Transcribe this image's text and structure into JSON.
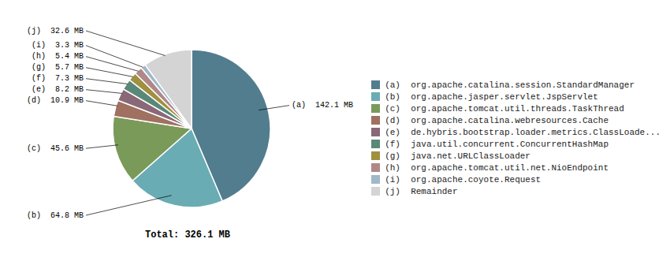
{
  "chart_data": {
    "type": "pie",
    "categories": [
      "(a)  org.apache.catalina.session.StandardManager",
      "(b)  org.apache.jasper.servlet.JspServlet",
      "(c)  org.apache.tomcat.util.threads.TaskThread",
      "(d)  org.apache.catalina.webresources.Cache",
      "(e)  de.hybris.bootstrap.loader.metrics.ClassLoade...",
      "(f)  java.util.concurrent.ConcurrentHashMap",
      "(g)  java.net.URLClassLoader",
      "(h)  org.apache.tomcat.util.net.NioEndpoint",
      "(i)  org.apache.coyote.Request",
      "(j)  Remainder"
    ],
    "values": [
      142.1,
      64.8,
      45.6,
      10.9,
      8.2,
      7.3,
      5.7,
      5.4,
      3.3,
      32.6
    ],
    "value_labels": [
      "(a)  142.1 MB",
      "(b)  64.8 MB",
      "(c)  45.6 MB",
      "(d)  10.9 MB",
      "(e)  8.2 MB",
      "(f)  7.3 MB",
      "(g)  5.7 MB",
      "(h)  5.4 MB",
      "(i)  3.3 MB",
      "(j)  32.6 MB"
    ],
    "data_labels": true,
    "colors": [
      "#527d8e",
      "#6aacb4",
      "#7a9a5a",
      "#a07060",
      "#8a6878",
      "#5a8878",
      "#a09040",
      "#b08888",
      "#a0b8c8",
      "#d4d4d4"
    ],
    "annotations": [
      "Total: 326.1 MB"
    ],
    "legend": "right"
  }
}
